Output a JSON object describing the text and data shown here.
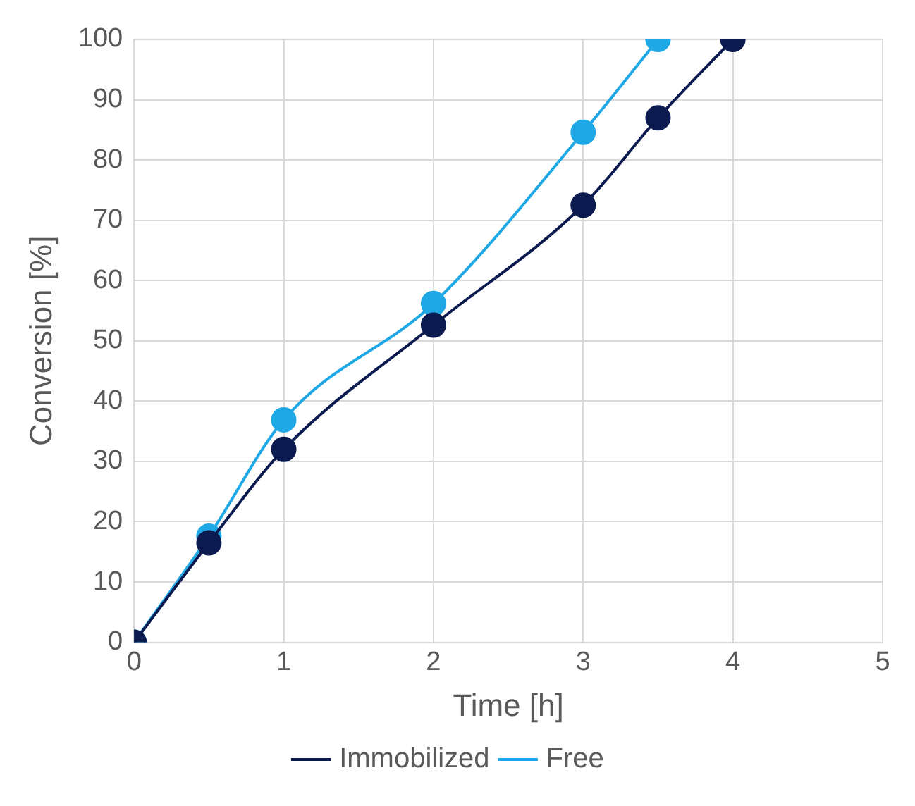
{
  "chart_data": {
    "type": "line",
    "xlabel": "Time [h]",
    "ylabel": "Conversion [%]",
    "xlim": [
      0,
      5
    ],
    "xticks": [
      0,
      1,
      2,
      3,
      4,
      5
    ],
    "ylim": [
      0,
      100
    ],
    "yticks": [
      0,
      10,
      20,
      30,
      40,
      50,
      60,
      70,
      80,
      90,
      100
    ],
    "grid": true,
    "legend": "bottom",
    "marker": "circle",
    "line_style": "solid",
    "series": [
      {
        "name": "Free",
        "color": "#1fa8e6",
        "x": [
          0,
          0.5,
          1,
          2,
          3,
          3.5
        ],
        "values": [
          0,
          17.6,
          36.9,
          56.2,
          84.6,
          100
        ]
      },
      {
        "name": "Immobilized",
        "color": "#0b1a4f",
        "x": [
          0,
          0.5,
          1,
          2,
          3,
          3.5,
          4
        ],
        "values": [
          0,
          16.5,
          32,
          52.6,
          72.5,
          87,
          100
        ]
      }
    ]
  }
}
